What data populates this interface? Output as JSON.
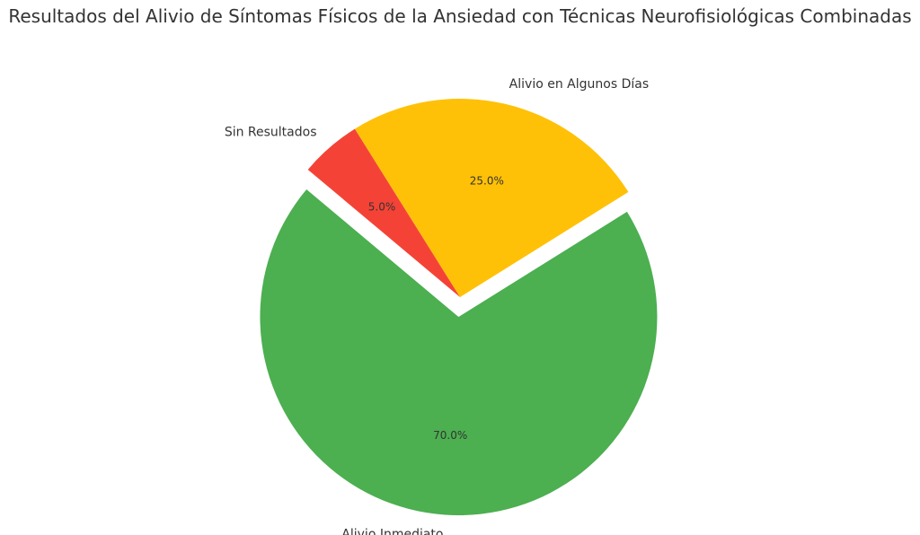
{
  "chart_data": {
    "type": "pie",
    "title": "Resultados del Alivio de Síntomas Físicos de la Ansiedad con Técnicas Neurofisiológicas Combinadas",
    "slices": [
      {
        "label": "Alivio Inmediato",
        "value": 70.0,
        "pct_label": "70.0%",
        "color": "#4caf50",
        "exploded": true
      },
      {
        "label": "Alivio en Algunos Días",
        "value": 25.0,
        "pct_label": "25.0%",
        "color": "#ffc107",
        "exploded": false
      },
      {
        "label": "Sin Resultados",
        "value": 5.0,
        "pct_label": "5.0%",
        "color": "#f44336",
        "exploded": false
      }
    ],
    "start_angle_deg": 140,
    "direction": "counterclockwise"
  }
}
